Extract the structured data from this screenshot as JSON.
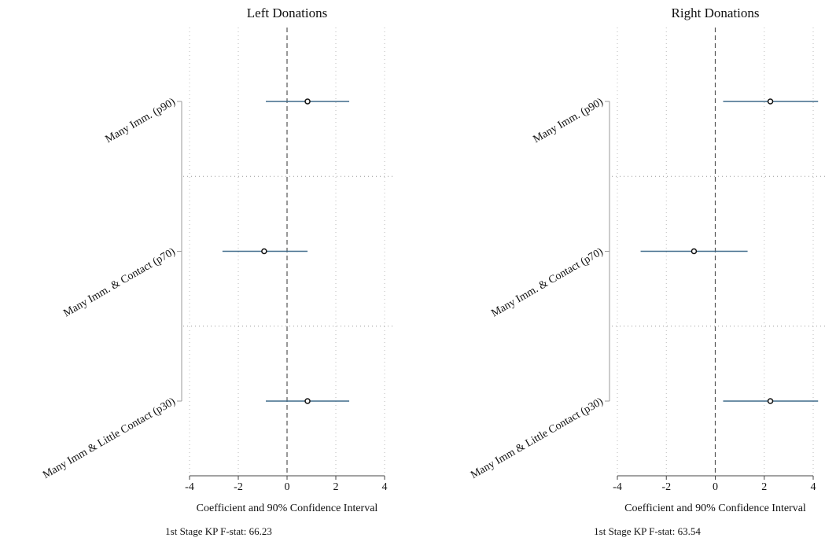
{
  "chart_data": [
    {
      "type": "coefplot",
      "title": "Left Donations",
      "categories": [
        "Many Imm. (p90)",
        "Many Imm. & Contact (p70)",
        "Many Imm & Little Contact (p30)"
      ],
      "values": [
        0.84,
        -0.94,
        0.84
      ],
      "lower": [
        -0.87,
        -2.65,
        -0.87
      ],
      "upper": [
        2.55,
        0.84,
        2.55
      ],
      "color": "#3e6a8a",
      "xlim": [
        -4,
        4
      ],
      "xticks": [
        -4,
        -2,
        0,
        2,
        4
      ],
      "xlabel": "Coefficient and 90% Confidence Interval",
      "note": "1st Stage KP F-stat: 66.23",
      "grid": true
    },
    {
      "type": "coefplot",
      "title": "Right Donations",
      "categories": [
        "Many Imm. (p90)",
        "Many Imm. & Contact (p70)",
        "Many Imm & Little Contact (p30)"
      ],
      "values": [
        2.25,
        -0.87,
        2.25
      ],
      "lower": [
        0.32,
        -3.05,
        0.32
      ],
      "upper": [
        4.2,
        1.32,
        4.2
      ],
      "color": "#3e6a8a",
      "xlim": [
        -4,
        4
      ],
      "xticks": [
        -4,
        -2,
        0,
        2,
        4
      ],
      "xlabel": "Coefficient and 90% Confidence Interval",
      "note": "1st Stage KP F-stat: 63.54",
      "grid": true
    }
  ]
}
